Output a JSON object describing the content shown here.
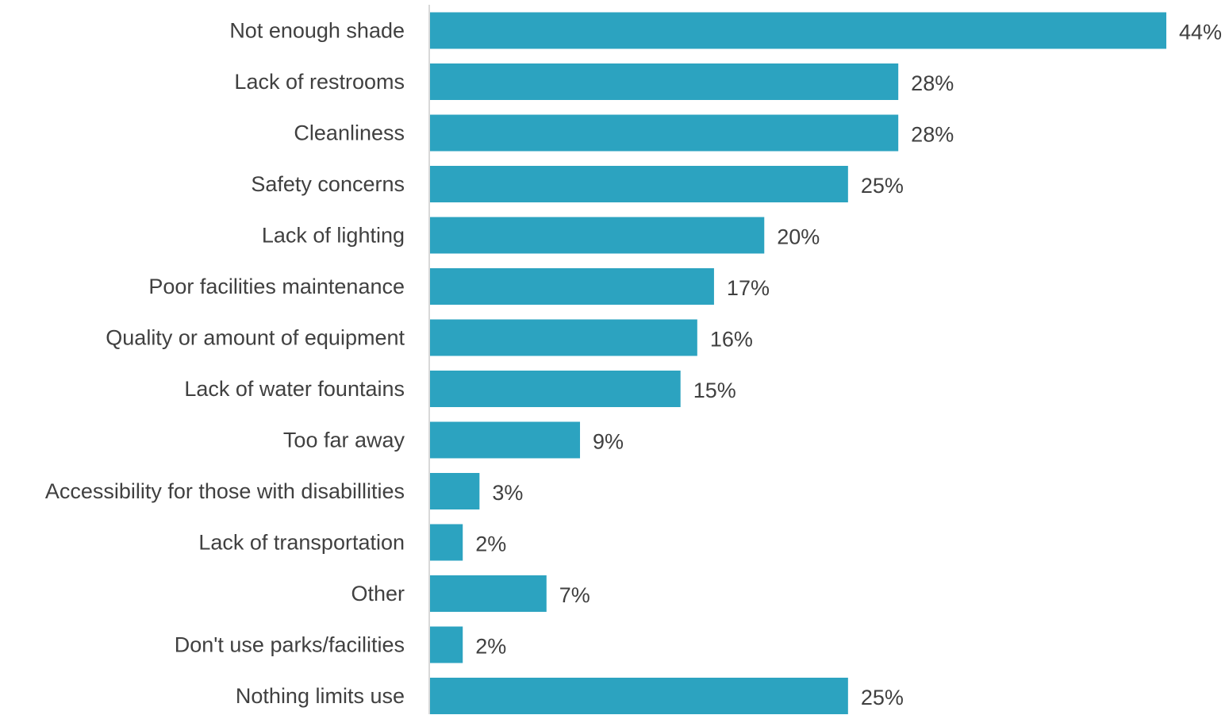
{
  "chart_data": {
    "type": "bar",
    "orientation": "horizontal",
    "categories": [
      "Not enough shade",
      "Lack of restrooms",
      "Cleanliness",
      "Safety concerns",
      "Lack of lighting",
      "Poor facilities maintenance",
      "Quality or amount of equipment",
      "Lack of water fountains",
      "Too far away",
      "Accessibility for those with disabillities",
      "Lack of transportation",
      "Other",
      "Don't use parks/facilities",
      "Nothing limits use"
    ],
    "values": [
      44,
      28,
      28,
      25,
      20,
      17,
      16,
      15,
      9,
      3,
      2,
      7,
      2,
      25
    ],
    "value_labels": [
      "44%",
      "28%",
      "28%",
      "25%",
      "20%",
      "17%",
      "16%",
      "15%",
      "9%",
      "3%",
      "2%",
      "7%",
      "2%",
      "25%"
    ],
    "title": "",
    "xlabel": "",
    "ylabel": "",
    "xlim": [
      0,
      44
    ],
    "grid": false,
    "legend": "none",
    "bar_color": "#2ca3c0",
    "axis_color": "#d9d9d9",
    "text_color": "#404040"
  }
}
